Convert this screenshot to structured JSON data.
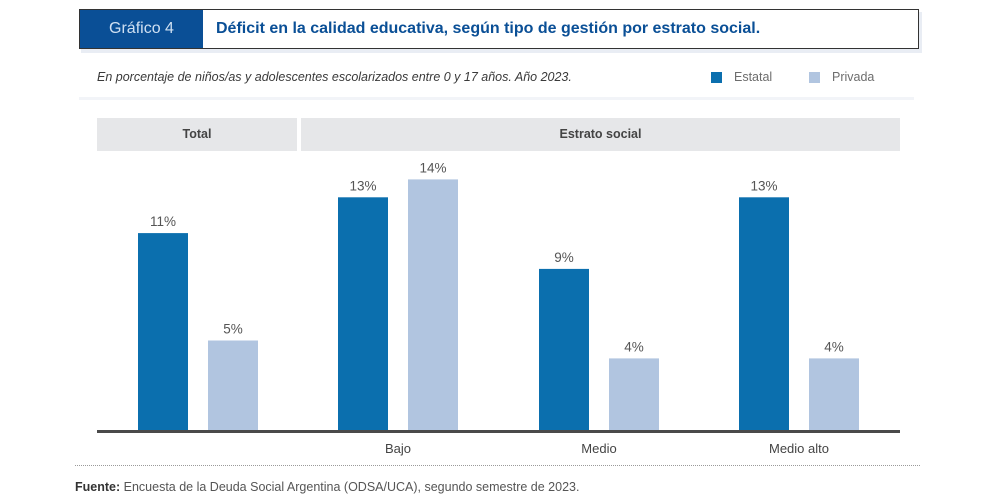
{
  "header": {
    "label": "Gráfico 4",
    "title": "Déficit en la calidad educativa, según tipo de gestión por estrato social."
  },
  "subtitle": "En porcentaje de niños/as y adolescentes escolarizados entre 0 y 17 años. Año 2023.",
  "legend": [
    {
      "name": "Estatal",
      "color": "#0b6fae"
    },
    {
      "name": "Privada",
      "color": "#b1c5e0"
    }
  ],
  "group_headers": {
    "total": "Total",
    "estrato": "Estrato social"
  },
  "source": {
    "label": "Fuente:",
    "text": "Encuesta de la Deuda Social Argentina (ODSA/UCA), segundo semestre de 2023."
  },
  "chart_data": {
    "type": "bar",
    "title": "Déficit en la calidad educativa, según tipo de gestión por estrato social.",
    "subtitle": "En porcentaje de niños/as y adolescentes escolarizados entre 0 y 17 años. Año 2023.",
    "xlabel": "",
    "ylabel": "",
    "unit": "%",
    "categories": [
      "Total",
      "Bajo",
      "Medio",
      "Medio alto"
    ],
    "category_labels_shown": [
      "",
      "Bajo",
      "Medio",
      "Medio alto"
    ],
    "category_groups": [
      {
        "name": "Total",
        "categories": [
          "Total"
        ]
      },
      {
        "name": "Estrato social",
        "categories": [
          "Bajo",
          "Medio",
          "Medio alto"
        ]
      }
    ],
    "series": [
      {
        "name": "Estatal",
        "color": "#0b6fae",
        "values": [
          11,
          13,
          9,
          13
        ],
        "labels": [
          "11%",
          "13%",
          "9%",
          "13%"
        ]
      },
      {
        "name": "Privada",
        "color": "#b1c5e0",
        "values": [
          5,
          14,
          4,
          4
        ],
        "labels": [
          "5%",
          "14%",
          "4%",
          "4%"
        ]
      }
    ],
    "ylim": [
      0,
      15
    ],
    "grid": false,
    "legend_position": "top-right"
  }
}
